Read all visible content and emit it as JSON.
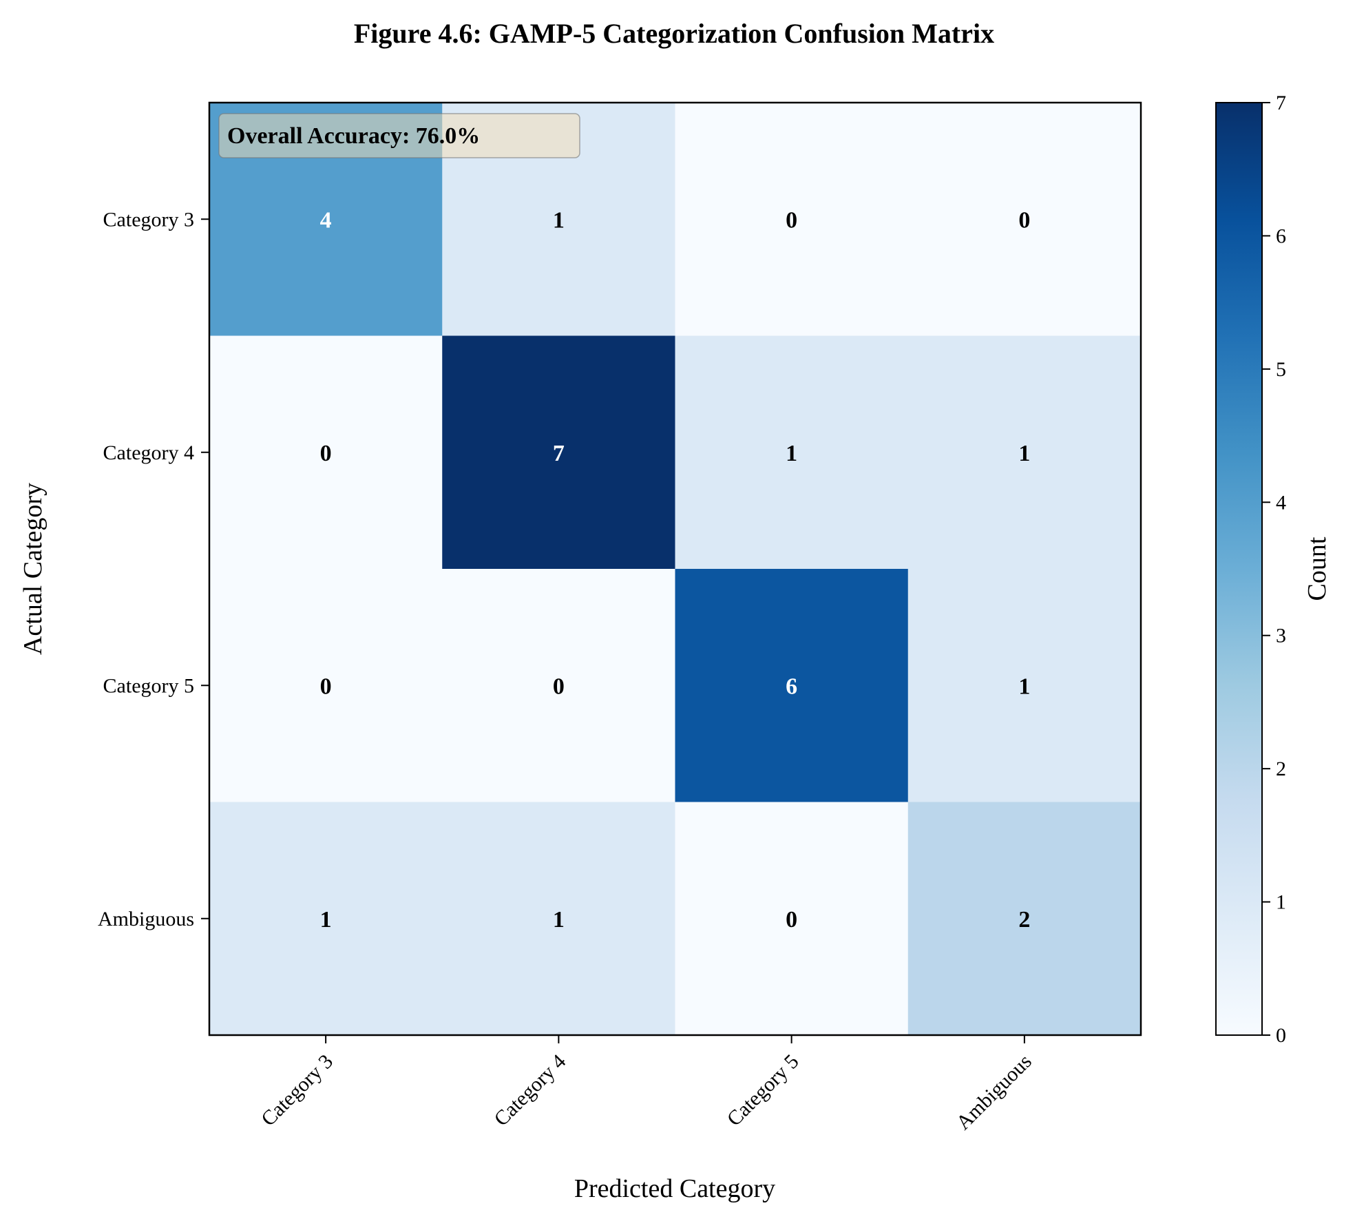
{
  "chart_data": {
    "type": "heatmap",
    "title": "Figure 4.6: GAMP-5 Categorization Confusion Matrix",
    "xlabel": "Predicted Category",
    "ylabel": "Actual Category",
    "x_categories": [
      "Category 3",
      "Category 4",
      "Category 5",
      "Ambiguous"
    ],
    "y_categories": [
      "Category 3",
      "Category 4",
      "Category 5",
      "Ambiguous"
    ],
    "values": [
      [
        4,
        1,
        0,
        0
      ],
      [
        0,
        7,
        1,
        1
      ],
      [
        0,
        0,
        6,
        1
      ],
      [
        1,
        1,
        0,
        2
      ]
    ],
    "annotation": "Overall Accuracy: 76.0%",
    "colorbar": {
      "label": "Count",
      "range": [
        0,
        7
      ],
      "ticks": [
        0,
        1,
        2,
        3,
        4,
        5,
        6,
        7
      ],
      "colormap": "Blues"
    },
    "grid": false,
    "legend": "none"
  }
}
